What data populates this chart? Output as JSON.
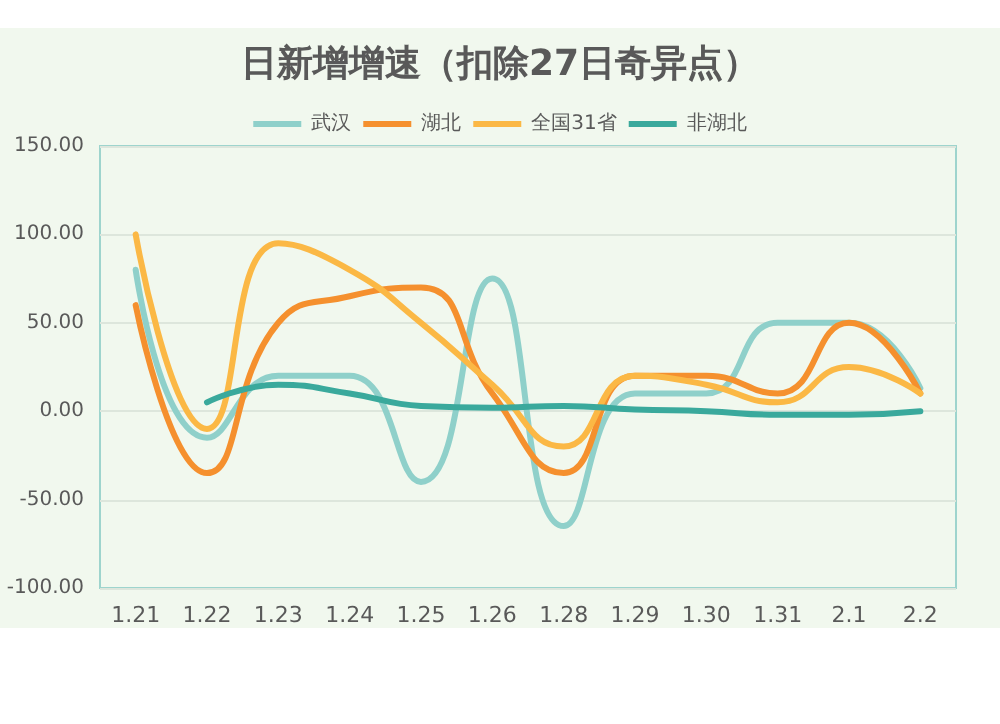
{
  "chart_data": {
    "type": "line",
    "title": "日新增增速（扣除27日奇异点）",
    "categories": [
      "1.21",
      "1.22",
      "1.23",
      "1.24",
      "1.25",
      "1.26",
      "1.28",
      "1.29",
      "1.30",
      "1.31",
      "2.1",
      "2.2"
    ],
    "series": [
      {
        "name": "武汉",
        "color": "#8fd0ca",
        "values": [
          80,
          -15,
          20,
          20,
          -40,
          75,
          -65,
          10,
          10,
          50,
          50,
          13
        ]
      },
      {
        "name": "湖北",
        "color": "#f5902e",
        "values": [
          60,
          -35,
          50,
          65,
          70,
          10,
          -35,
          20,
          20,
          10,
          50,
          10
        ]
      },
      {
        "name": "全国31省",
        "color": "#fbb845",
        "values": [
          100,
          -10,
          95,
          80,
          50,
          15,
          -20,
          20,
          15,
          5,
          25,
          10
        ]
      },
      {
        "name": "非湖北",
        "color": "#3aa99c",
        "values": [
          null,
          5,
          15,
          10,
          3,
          2,
          3,
          1,
          0,
          -2,
          -2,
          0
        ]
      }
    ],
    "ylim": [
      -100,
      150
    ],
    "yticks": [
      {
        "value": -100,
        "label": "-100.00"
      },
      {
        "value": -50,
        "label": "-50.00"
      },
      {
        "value": 0,
        "label": "0.00"
      },
      {
        "value": 50,
        "label": "50.00"
      },
      {
        "value": 100,
        "label": "100.00"
      },
      {
        "value": 150,
        "label": "150.00"
      }
    ],
    "grid": "y",
    "legend": "top",
    "marker": "none",
    "line_style": "solid"
  }
}
